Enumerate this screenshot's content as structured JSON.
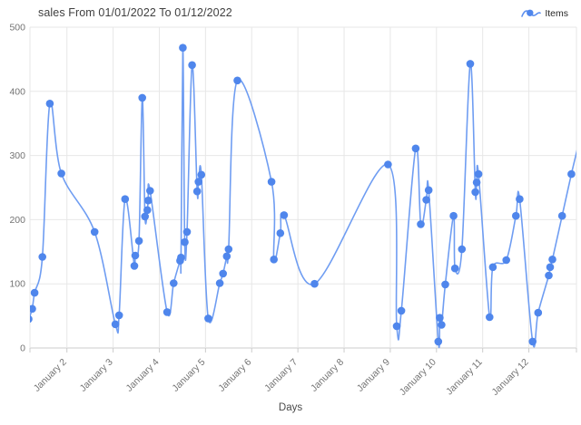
{
  "title": "sales From 01/01/2022 To 01/12/2022",
  "legend": {
    "label": "Items"
  },
  "x_axis_title": "Days",
  "colors": {
    "line": "#6f9df2",
    "marker": "#4f86ec",
    "grid": "#e7e7e7",
    "axis_line": "#cccccc",
    "tick_text": "#737373"
  },
  "chart_data": {
    "type": "line",
    "title": "sales From 01/01/2022 To 01/12/2022",
    "xlabel": "Days",
    "ylabel": "",
    "legend_position": "top-right",
    "grid": true,
    "smooth": true,
    "x_range": [
      1.2,
      13.03
    ],
    "y_range": [
      0,
      500
    ],
    "y_ticks": [
      0,
      100,
      200,
      300,
      400,
      500
    ],
    "x_ticks": [
      {
        "day": 2,
        "label": "January 2"
      },
      {
        "day": 3,
        "label": "January 3"
      },
      {
        "day": 4,
        "label": "January 4"
      },
      {
        "day": 5,
        "label": "January 5"
      },
      {
        "day": 6,
        "label": "January 6"
      },
      {
        "day": 7,
        "label": "January 7"
      },
      {
        "day": 8,
        "label": "January 8"
      },
      {
        "day": 9,
        "label": "January 9"
      },
      {
        "day": 10,
        "label": "January 10"
      },
      {
        "day": 11,
        "label": "January 11"
      },
      {
        "day": 12,
        "label": "January 12"
      }
    ],
    "series": [
      {
        "name": "Items",
        "points": [
          [
            1.17,
            45
          ],
          [
            1.25,
            61
          ],
          [
            1.3,
            86
          ],
          [
            1.47,
            142
          ],
          [
            1.63,
            381
          ],
          [
            1.88,
            272
          ],
          [
            2.6,
            181
          ],
          [
            3.05,
            37
          ],
          [
            3.13,
            51
          ],
          [
            3.26,
            232
          ],
          [
            3.46,
            128
          ],
          [
            3.48,
            144
          ],
          [
            3.56,
            167
          ],
          [
            3.63,
            390
          ],
          [
            3.69,
            205
          ],
          [
            3.74,
            215
          ],
          [
            3.76,
            230
          ],
          [
            3.8,
            245
          ],
          [
            4.17,
            56
          ],
          [
            4.31,
            101
          ],
          [
            4.45,
            136
          ],
          [
            4.47,
            141
          ],
          [
            4.51,
            468
          ],
          [
            4.55,
            165
          ],
          [
            4.6,
            181
          ],
          [
            4.71,
            441
          ],
          [
            4.82,
            244
          ],
          [
            4.85,
            259
          ],
          [
            4.91,
            270
          ],
          [
            5.06,
            46
          ],
          [
            5.31,
            101
          ],
          [
            5.38,
            116
          ],
          [
            5.46,
            143
          ],
          [
            5.5,
            154
          ],
          [
            5.69,
            417
          ],
          [
            6.43,
            259
          ],
          [
            6.48,
            138
          ],
          [
            6.62,
            179
          ],
          [
            6.7,
            207
          ],
          [
            7.36,
            100
          ],
          [
            8.95,
            286
          ],
          [
            9.14,
            34
          ],
          [
            9.24,
            58
          ],
          [
            9.55,
            311
          ],
          [
            9.66,
            193
          ],
          [
            9.78,
            231
          ],
          [
            9.83,
            246
          ],
          [
            10.04,
            10
          ],
          [
            10.07,
            47
          ],
          [
            10.11,
            36
          ],
          [
            10.19,
            99
          ],
          [
            10.37,
            206
          ],
          [
            10.4,
            124
          ],
          [
            10.55,
            154
          ],
          [
            10.73,
            443
          ],
          [
            10.84,
            243
          ],
          [
            10.87,
            258
          ],
          [
            10.91,
            271
          ],
          [
            11.15,
            48
          ],
          [
            11.22,
            126
          ],
          [
            11.51,
            137
          ],
          [
            11.72,
            206
          ],
          [
            11.8,
            232
          ],
          [
            12.08,
            10
          ],
          [
            12.2,
            55
          ],
          [
            12.43,
            113
          ],
          [
            12.46,
            126
          ],
          [
            12.51,
            138
          ],
          [
            12.72,
            206
          ],
          [
            12.92,
            271
          ],
          [
            13.15,
            340
          ]
        ]
      }
    ]
  }
}
